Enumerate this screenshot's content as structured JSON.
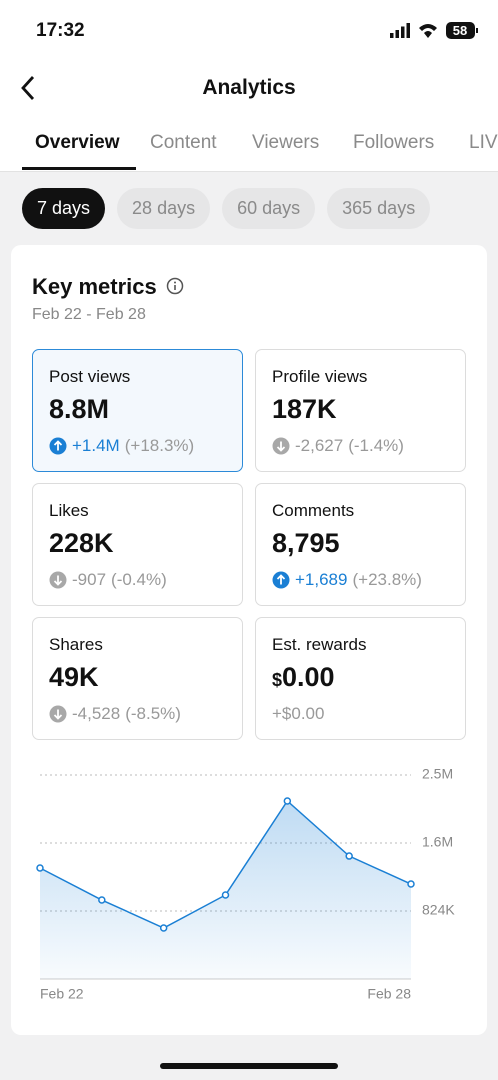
{
  "status_bar": {
    "time": "17:32",
    "battery": "58"
  },
  "header": {
    "title": "Analytics"
  },
  "tabs": [
    "Overview",
    "Content",
    "Viewers",
    "Followers",
    "LIVE"
  ],
  "date_filters": [
    "7 days",
    "28 days",
    "60 days",
    "365 days"
  ],
  "card": {
    "title": "Key metrics",
    "date_range": "Feb 22 - Feb 28"
  },
  "metrics": [
    {
      "label": "Post views",
      "value": "8.8M",
      "change": "+1.4M",
      "percent": "(+18.3%)",
      "trend": "up"
    },
    {
      "label": "Profile views",
      "value": "187K",
      "change": "-2,627",
      "percent": "(-1.4%)",
      "trend": "down"
    },
    {
      "label": "Likes",
      "value": "228K",
      "change": "-907",
      "percent": "(-0.4%)",
      "trend": "down"
    },
    {
      "label": "Comments",
      "value": "8,795",
      "change": "+1,689",
      "percent": "(+23.8%)",
      "trend": "up"
    },
    {
      "label": "Shares",
      "value": "49K",
      "change": "-4,528",
      "percent": "(-8.5%)",
      "trend": "down"
    },
    {
      "label": "Est. rewards",
      "currency": "$",
      "value": "0.00",
      "change": "+$0.00"
    }
  ],
  "chart_data": {
    "type": "area",
    "x": [
      "Feb 22",
      null,
      null,
      null,
      null,
      null,
      "Feb 28"
    ],
    "values": [
      1345000,
      957000,
      618000,
      1018000,
      2157000,
      1490000,
      1151000
    ],
    "ylim": [
      0,
      2472000
    ],
    "yticks": [
      {
        "value": 824000,
        "label": "824K"
      },
      {
        "value": 1648000,
        "label": "1.6M"
      },
      {
        "value": 2472000,
        "label": "2.5M"
      }
    ],
    "color": "#1a7fd4",
    "grid": true
  }
}
